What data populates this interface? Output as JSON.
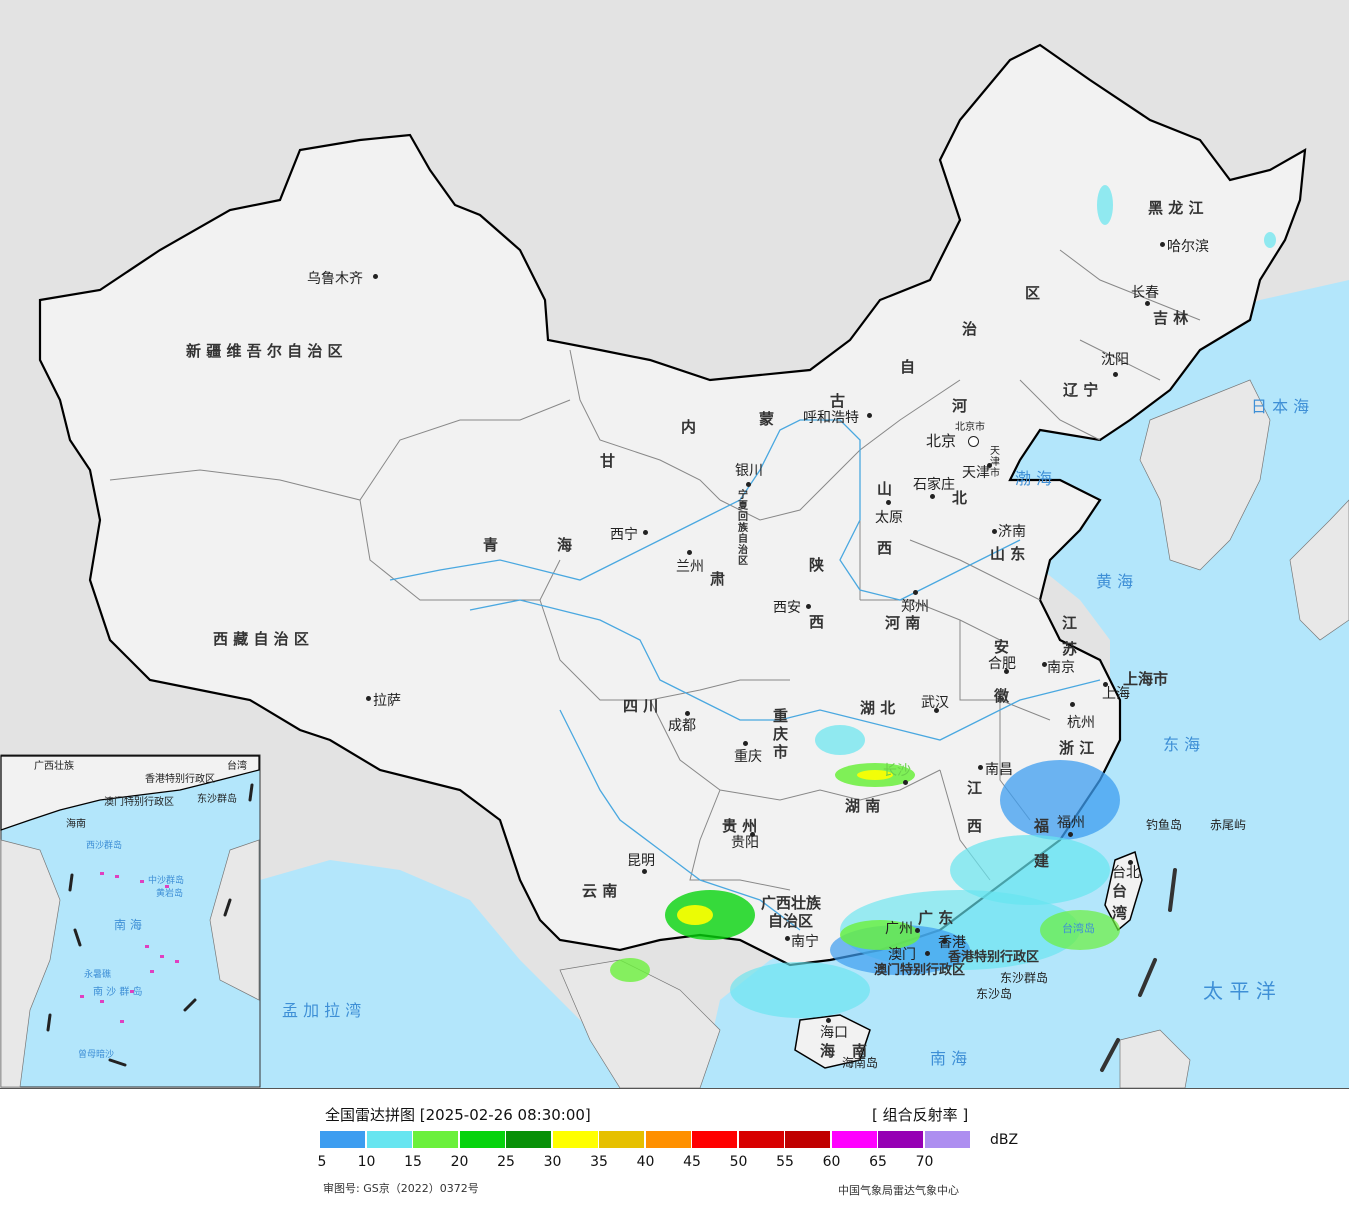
{
  "title": "全国雷达拼图 [2025-02-26 08:30:00]",
  "product": "[ 组合反射率 ]",
  "unit": "dBZ",
  "approval": "审图号: GS京（2022）0372号",
  "agency": "中国气象局雷达气象中心",
  "colors": {
    "sea": "#b3e6fb",
    "land": "#f2f2f2",
    "outside": "#e3e3e3",
    "border": "#000000",
    "river": "#4aa8e0"
  },
  "scale": {
    "colors": [
      "#3d9df0",
      "#67e5f0",
      "#6bf03c",
      "#06d30d",
      "#089008",
      "#ffff00",
      "#e6c000",
      "#ff9000",
      "#ff0000",
      "#d80000",
      "#c00000",
      "#ff00ff",
      "#9600b4",
      "#ad8ef0"
    ],
    "ticks": [
      "5",
      "10",
      "15",
      "20",
      "25",
      "30",
      "35",
      "40",
      "45",
      "50",
      "55",
      "60",
      "65",
      "70"
    ]
  },
  "cities": [
    {
      "name": "乌鲁木齐"
    },
    {
      "name": "拉萨"
    },
    {
      "name": "西宁"
    },
    {
      "name": "兰州"
    },
    {
      "name": "银川"
    },
    {
      "name": "呼和浩特"
    },
    {
      "name": "北京"
    },
    {
      "name": "北京市"
    },
    {
      "name": "天津"
    },
    {
      "name": "天津市"
    },
    {
      "name": "石家庄"
    },
    {
      "name": "太原"
    },
    {
      "name": "济南"
    },
    {
      "name": "郑州"
    },
    {
      "name": "西安"
    },
    {
      "name": "成都"
    },
    {
      "name": "重庆"
    },
    {
      "name": "武汉"
    },
    {
      "name": "合肥"
    },
    {
      "name": "南京"
    },
    {
      "name": "上海"
    },
    {
      "name": "杭州"
    },
    {
      "name": "南昌"
    },
    {
      "name": "长沙"
    },
    {
      "name": "贵阳"
    },
    {
      "name": "昆明"
    },
    {
      "name": "南宁"
    },
    {
      "name": "广州"
    },
    {
      "name": "香港"
    },
    {
      "name": "澳门"
    },
    {
      "name": "福州"
    },
    {
      "name": "台北"
    },
    {
      "name": "海口"
    },
    {
      "name": "哈尔滨"
    },
    {
      "name": "长春"
    },
    {
      "name": "沈阳"
    }
  ],
  "provinces": [
    {
      "name": "新 疆 维 吾 尔 自 治 区"
    },
    {
      "name": "西 藏 自 治 区"
    },
    {
      "name": "青"
    },
    {
      "name": "海"
    },
    {
      "name": "甘"
    },
    {
      "name": "肃"
    },
    {
      "name": "内"
    },
    {
      "name": "蒙"
    },
    {
      "name": "古"
    },
    {
      "name": "自"
    },
    {
      "name": "治"
    },
    {
      "name": "区"
    },
    {
      "name": "黑 龙 江"
    },
    {
      "name": "吉 林"
    },
    {
      "name": "辽 宁"
    },
    {
      "name": "河"
    },
    {
      "name": "北"
    },
    {
      "name": "山"
    },
    {
      "name": "西"
    },
    {
      "name": "山 东"
    },
    {
      "name": "陕"
    },
    {
      "name": "西"
    },
    {
      "name": "河 南"
    },
    {
      "name": "四 川"
    },
    {
      "name": "重 庆 市"
    },
    {
      "name": "湖 北"
    },
    {
      "name": "安"
    },
    {
      "name": "徽"
    },
    {
      "name": "江"
    },
    {
      "name": "苏"
    },
    {
      "name": "上海市"
    },
    {
      "name": "浙 江"
    },
    {
      "name": "江"
    },
    {
      "name": "西"
    },
    {
      "name": "湖 南"
    },
    {
      "name": "贵 州"
    },
    {
      "name": "云 南"
    },
    {
      "name": "广西壮族"
    },
    {
      "name": "自治区"
    },
    {
      "name": "广 东"
    },
    {
      "name": "福"
    },
    {
      "name": "建"
    },
    {
      "name": "台"
    },
    {
      "name": "湾"
    },
    {
      "name": "海"
    },
    {
      "name": "南"
    },
    {
      "name": "宁夏回族自治区"
    },
    {
      "name": "香港特别行政区"
    },
    {
      "name": "澳门特别行政区"
    }
  ],
  "seas": [
    {
      "name": "日 本 海"
    },
    {
      "name": "渤 海"
    },
    {
      "name": "黄 海"
    },
    {
      "name": "东 海"
    },
    {
      "name": "太 平 洋"
    },
    {
      "name": "南 海"
    },
    {
      "name": "孟 加 拉 湾"
    }
  ],
  "islands": [
    {
      "name": "钓鱼岛"
    },
    {
      "name": "赤尾屿"
    },
    {
      "name": "台湾岛"
    },
    {
      "name": "东沙群岛"
    },
    {
      "name": "东沙岛"
    },
    {
      "name": "海南岛"
    }
  ],
  "inset": {
    "labels": [
      "广西壮族",
      "香港特别行政区",
      "澳门特别行政区",
      "东沙群岛",
      "海南",
      "西沙群岛",
      "中沙群岛",
      "黄岩岛",
      "南 海",
      "南 沙 群 岛",
      "永暑礁",
      "曾母暗沙",
      "台湾"
    ]
  }
}
